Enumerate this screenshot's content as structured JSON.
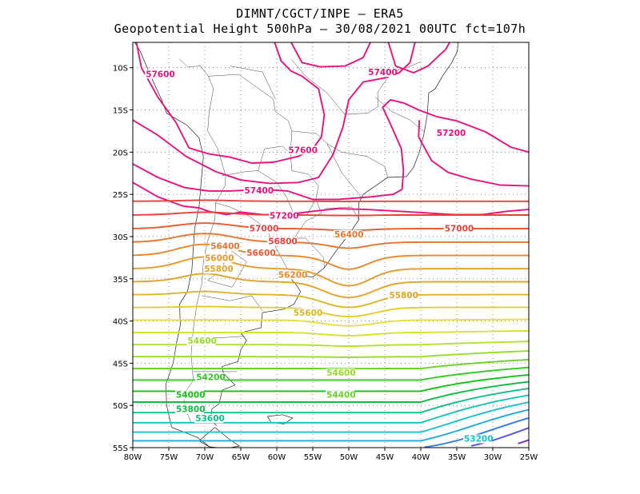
{
  "title": {
    "line1": "DIMNT/CGCT/INPE  –   ERA5",
    "line2": "Geopotential Height 500hPa –   30/08/2021 00UTC fct=107h"
  },
  "map": {
    "lon_range": [
      -80,
      -25
    ],
    "lat_range": [
      -55,
      -7
    ],
    "lon_ticks": [
      {
        "v": -80,
        "label": "80W"
      },
      {
        "v": -75,
        "label": "75W"
      },
      {
        "v": -70,
        "label": "70W"
      },
      {
        "v": -65,
        "label": "65W"
      },
      {
        "v": -60,
        "label": "60W"
      },
      {
        "v": -55,
        "label": "55W"
      },
      {
        "v": -50,
        "label": "50W"
      },
      {
        "v": -45,
        "label": "45W"
      },
      {
        "v": -40,
        "label": "40W"
      },
      {
        "v": -35,
        "label": "35W"
      },
      {
        "v": -30,
        "label": "30W"
      },
      {
        "v": -25,
        "label": "25W"
      }
    ],
    "lat_ticks": [
      {
        "v": -10,
        "label": "10S"
      },
      {
        "v": -15,
        "label": "15S"
      },
      {
        "v": -20,
        "label": "20S"
      },
      {
        "v": -25,
        "label": "25S"
      },
      {
        "v": -30,
        "label": "30S"
      },
      {
        "v": -35,
        "label": "35S"
      },
      {
        "v": -40,
        "label": "40S"
      },
      {
        "v": -45,
        "label": "45S"
      },
      {
        "v": -50,
        "label": "50S"
      },
      {
        "v": -55,
        "label": "55S"
      }
    ],
    "grid": "dotted"
  },
  "contours": [
    {
      "level": 57600,
      "color": "#e8127c"
    },
    {
      "level": 57400,
      "color": "#e8127c"
    },
    {
      "level": 57200,
      "color": "#e8127c"
    },
    {
      "level": 57000,
      "color": "#e8403a"
    },
    {
      "level": 56800,
      "color": "#e8403a"
    },
    {
      "level": 56600,
      "color": "#ea5a32"
    },
    {
      "level": 56400,
      "color": "#e6752e"
    },
    {
      "level": 56200,
      "color": "#e8882a"
    },
    {
      "level": 56000,
      "color": "#e89a28"
    },
    {
      "level": 55800,
      "color": "#e2a428"
    },
    {
      "level": 55600,
      "color": "#dcb52a"
    },
    {
      "level": 55400,
      "color": "#e4cc2c"
    },
    {
      "level": 55200,
      "color": "#e6e040"
    },
    {
      "level": 55000,
      "color": "#d4e42c"
    },
    {
      "level": 54800,
      "color": "#b4e02c"
    },
    {
      "level": 54600,
      "color": "#96dc28"
    },
    {
      "level": 54400,
      "color": "#6ad426"
    },
    {
      "level": 54200,
      "color": "#2ecc1e"
    },
    {
      "level": 54000,
      "color": "#12c412"
    },
    {
      "level": 53800,
      "color": "#10bc48"
    },
    {
      "level": 53600,
      "color": "#10c08a"
    },
    {
      "level": 53400,
      "color": "#16c4b4"
    },
    {
      "level": 53200,
      "color": "#18c0d4"
    },
    {
      "level": 53000,
      "color": "#20a8e0"
    },
    {
      "level": 52800,
      "color": "#3080e4"
    },
    {
      "level": 52600,
      "color": "#5050e4"
    },
    {
      "level": 52400,
      "color": "#8020d8"
    }
  ],
  "contour_labels": [
    {
      "text": "57600",
      "lon": -78.2,
      "lat": -11.0,
      "color": "#e8127c"
    },
    {
      "text": "57600",
      "lon": -58.4,
      "lat": -20.0,
      "color": "#e8127c"
    },
    {
      "text": "57400",
      "lon": -47.3,
      "lat": -10.8,
      "color": "#e8127c"
    },
    {
      "text": "57200",
      "lon": -37.8,
      "lat": -18.0,
      "color": "#e8127c"
    },
    {
      "text": "57400",
      "lon": -64.5,
      "lat": -24.8,
      "color": "#e8127c"
    },
    {
      "text": "57200",
      "lon": -61.0,
      "lat": -27.8,
      "color": "#e8127c"
    },
    {
      "text": "57000",
      "lon": -63.8,
      "lat": -29.3,
      "color": "#e8403a"
    },
    {
      "text": "57000",
      "lon": -36.7,
      "lat": -29.3,
      "color": "#e8403a"
    },
    {
      "text": "56800",
      "lon": -61.2,
      "lat": -30.8,
      "color": "#e8403a"
    },
    {
      "text": "56400",
      "lon": -52.0,
      "lat": -30.0,
      "color": "#e6752e"
    },
    {
      "text": "56400",
      "lon": -69.2,
      "lat": -31.4,
      "color": "#e6752e"
    },
    {
      "text": "56600",
      "lon": -64.2,
      "lat": -32.2,
      "color": "#ea5a32"
    },
    {
      "text": "56000",
      "lon": -70.0,
      "lat": -32.8,
      "color": "#e89a28"
    },
    {
      "text": "55800",
      "lon": -70.1,
      "lat": -34.1,
      "color": "#e2a428"
    },
    {
      "text": "56200",
      "lon": -59.8,
      "lat": -34.8,
      "color": "#e8882a"
    },
    {
      "text": "55800",
      "lon": -44.4,
      "lat": -37.2,
      "color": "#e2a428"
    },
    {
      "text": "55600",
      "lon": -57.7,
      "lat": -39.3,
      "color": "#dcb52a"
    },
    {
      "text": "54600",
      "lon": -72.4,
      "lat": -42.6,
      "color": "#96dc28"
    },
    {
      "text": "54600",
      "lon": -53.1,
      "lat": -46.4,
      "color": "#96dc28"
    },
    {
      "text": "54200",
      "lon": -71.2,
      "lat": -46.9,
      "color": "#2ecc1e"
    },
    {
      "text": "54400",
      "lon": -53.1,
      "lat": -49.0,
      "color": "#6ad426"
    },
    {
      "text": "54000",
      "lon": -74.0,
      "lat": -49.0,
      "color": "#12c412"
    },
    {
      "text": "53800",
      "lon": -74.0,
      "lat": -50.7,
      "color": "#10bc48"
    },
    {
      "text": "53600",
      "lon": -71.3,
      "lat": -51.8,
      "color": "#10c08a"
    },
    {
      "text": "53200",
      "lon": -34.0,
      "lat": -54.2,
      "color": "#18c0d4"
    }
  ]
}
